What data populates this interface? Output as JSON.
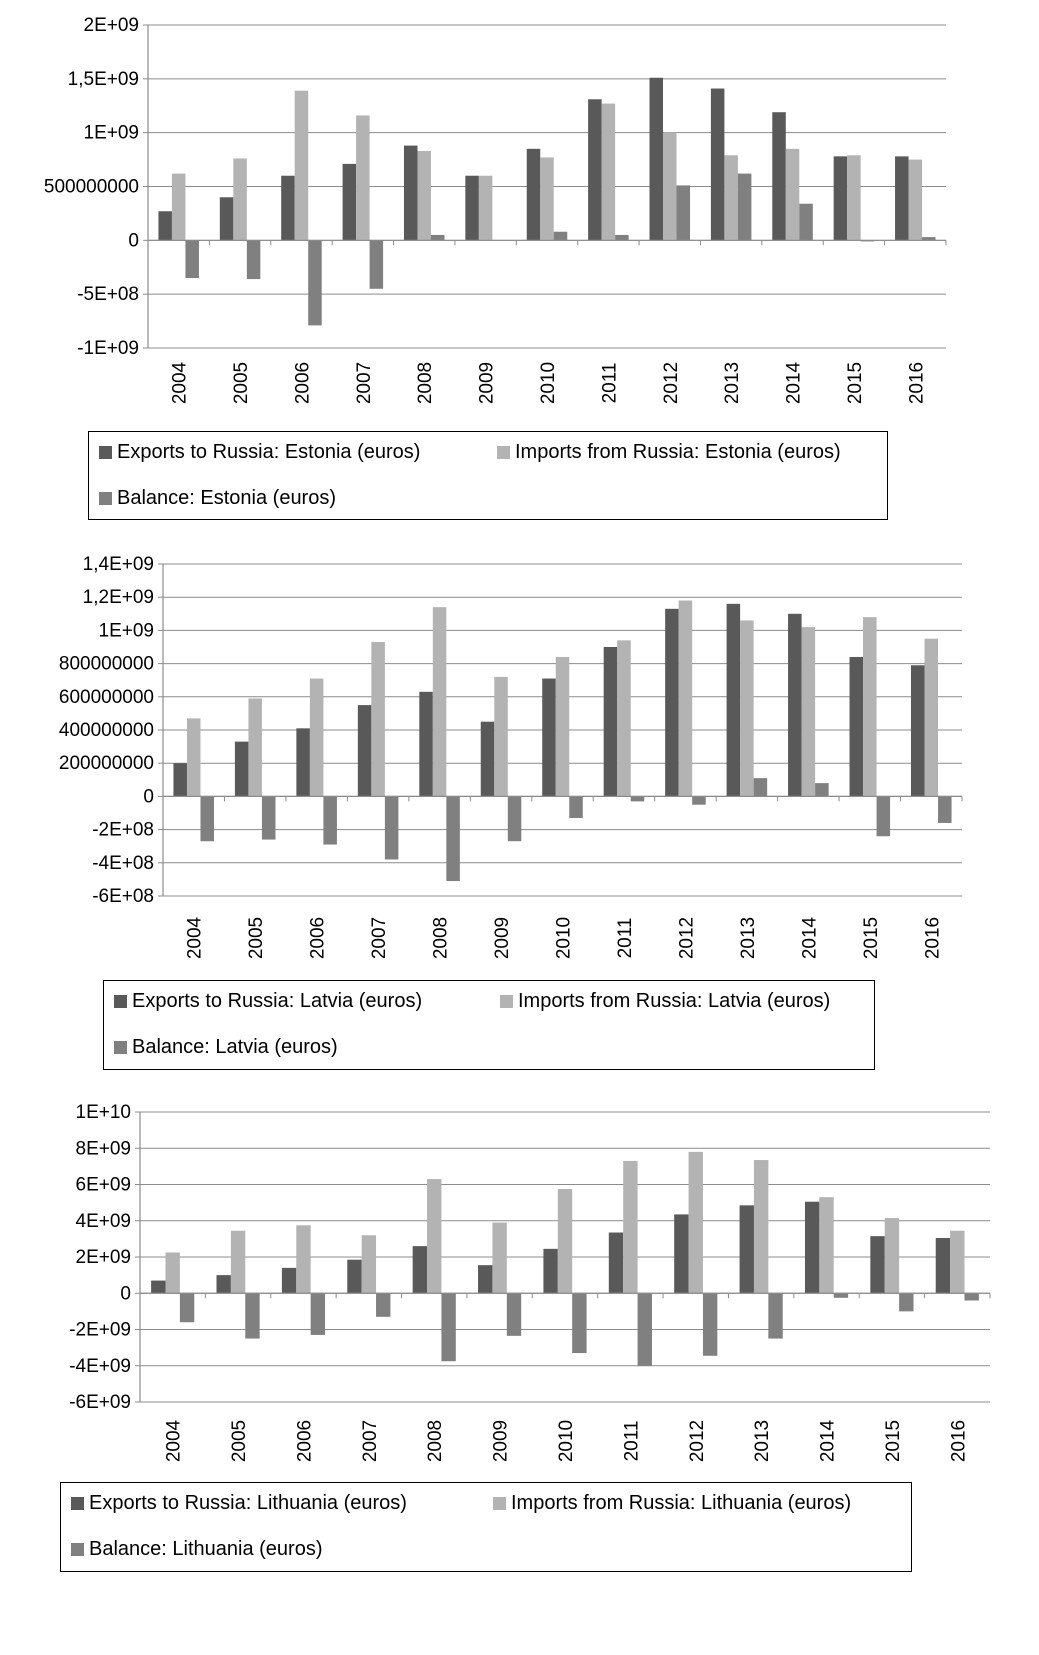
{
  "colors": {
    "exports": "#595959",
    "imports": "#b3b3b3",
    "balance": "#808080",
    "grid": "#8c8c8c",
    "axis": "#8c8c8c"
  },
  "chart_data": [
    {
      "type": "bar",
      "categories": [
        "2004",
        "2005",
        "2006",
        "2007",
        "2008",
        "2009",
        "2010",
        "2011",
        "2012",
        "2013",
        "2014",
        "2015",
        "2016"
      ],
      "series": [
        {
          "name": "Exports to Russia: Estonia (euros)",
          "values": [
            270000000,
            400000000,
            600000000,
            710000000,
            880000000,
            600000000,
            850000000,
            1310000000,
            1510000000,
            1410000000,
            1190000000,
            780000000,
            780000000
          ]
        },
        {
          "name": "Imports from Russia: Estonia (euros)",
          "values": [
            620000000,
            760000000,
            1390000000,
            1160000000,
            830000000,
            600000000,
            770000000,
            1270000000,
            1000000000,
            790000000,
            850000000,
            790000000,
            750000000
          ]
        },
        {
          "name": "Balance: Estonia (euros)",
          "values": [
            -350000000,
            -360000000,
            -790000000,
            -450000000,
            50000000,
            0,
            80000000,
            50000000,
            510000000,
            620000000,
            340000000,
            -10000000,
            30000000
          ]
        }
      ],
      "ylim": [
        -1000000000,
        2000000000
      ],
      "yticks": [
        {
          "value": 2000000000,
          "label": "2E+09"
        },
        {
          "value": 1500000000,
          "label": "1,5E+09"
        },
        {
          "value": 1000000000,
          "label": "1E+09"
        },
        {
          "value": 500000000,
          "label": "500000000"
        },
        {
          "value": 0,
          "label": "0"
        },
        {
          "value": -500000000,
          "label": "-5E+08"
        },
        {
          "value": -1000000000,
          "label": "-1E+09"
        }
      ],
      "grid": true,
      "legend_position": "bottom"
    },
    {
      "type": "bar",
      "categories": [
        "2004",
        "2005",
        "2006",
        "2007",
        "2008",
        "2009",
        "2010",
        "2011",
        "2012",
        "2013",
        "2014",
        "2015",
        "2016"
      ],
      "series": [
        {
          "name": "Exports to Russia: Latvia (euros)",
          "values": [
            200000000,
            330000000,
            410000000,
            550000000,
            630000000,
            450000000,
            710000000,
            900000000,
            1130000000,
            1160000000,
            1100000000,
            840000000,
            790000000
          ]
        },
        {
          "name": "Imports from Russia: Latvia (euros)",
          "values": [
            470000000,
            590000000,
            710000000,
            930000000,
            1140000000,
            720000000,
            840000000,
            940000000,
            1180000000,
            1060000000,
            1020000000,
            1080000000,
            950000000
          ]
        },
        {
          "name": "Balance: Latvia (euros)",
          "values": [
            -270000000,
            -260000000,
            -290000000,
            -380000000,
            -510000000,
            -270000000,
            -130000000,
            -30000000,
            -50000000,
            110000000,
            80000000,
            -240000000,
            -160000000
          ]
        }
      ],
      "ylim": [
        -600000000,
        1400000000
      ],
      "yticks": [
        {
          "value": 1400000000,
          "label": "1,4E+09"
        },
        {
          "value": 1200000000,
          "label": "1,2E+09"
        },
        {
          "value": 1000000000,
          "label": "1E+09"
        },
        {
          "value": 800000000,
          "label": "800000000"
        },
        {
          "value": 600000000,
          "label": "600000000"
        },
        {
          "value": 400000000,
          "label": "400000000"
        },
        {
          "value": 200000000,
          "label": "200000000"
        },
        {
          "value": 0,
          "label": "0"
        },
        {
          "value": -200000000,
          "label": "-2E+08"
        },
        {
          "value": -400000000,
          "label": "-4E+08"
        },
        {
          "value": -600000000,
          "label": "-6E+08"
        }
      ],
      "grid": true,
      "legend_position": "bottom"
    },
    {
      "type": "bar",
      "categories": [
        "2004",
        "2005",
        "2006",
        "2007",
        "2008",
        "2009",
        "2010",
        "2011",
        "2012",
        "2013",
        "2014",
        "2015",
        "2016"
      ],
      "series": [
        {
          "name": "Exports to Russia: Lithuania (euros)",
          "values": [
            700000000,
            1000000000,
            1400000000,
            1850000000,
            2600000000,
            1550000000,
            2450000000,
            3350000000,
            4350000000,
            4850000000,
            5050000000,
            3150000000,
            3050000000
          ]
        },
        {
          "name": "Imports from Russia: Lithuania (euros)",
          "values": [
            2250000000,
            3450000000,
            3750000000,
            3200000000,
            6300000000,
            3900000000,
            5750000000,
            7300000000,
            7800000000,
            7350000000,
            5300000000,
            4150000000,
            3450000000
          ]
        },
        {
          "name": "Balance: Lithuania (euros)",
          "values": [
            -1600000000,
            -2500000000,
            -2300000000,
            -1300000000,
            -3750000000,
            -2350000000,
            -3300000000,
            -4000000000,
            -3450000000,
            -2500000000,
            -250000000,
            -1000000000,
            -400000000
          ]
        }
      ],
      "ylim": [
        -6000000000,
        10000000000
      ],
      "yticks": [
        {
          "value": 10000000000,
          "label": "1E+10"
        },
        {
          "value": 8000000000,
          "label": "8E+09"
        },
        {
          "value": 6000000000,
          "label": "6E+09"
        },
        {
          "value": 4000000000,
          "label": "4E+09"
        },
        {
          "value": 2000000000,
          "label": "2E+09"
        },
        {
          "value": 0,
          "label": "0"
        },
        {
          "value": -2000000000,
          "label": "-2E+09"
        },
        {
          "value": -4000000000,
          "label": "-4E+09"
        },
        {
          "value": -6000000000,
          "label": "-6E+09"
        }
      ],
      "grid": true,
      "legend_position": "bottom"
    }
  ]
}
